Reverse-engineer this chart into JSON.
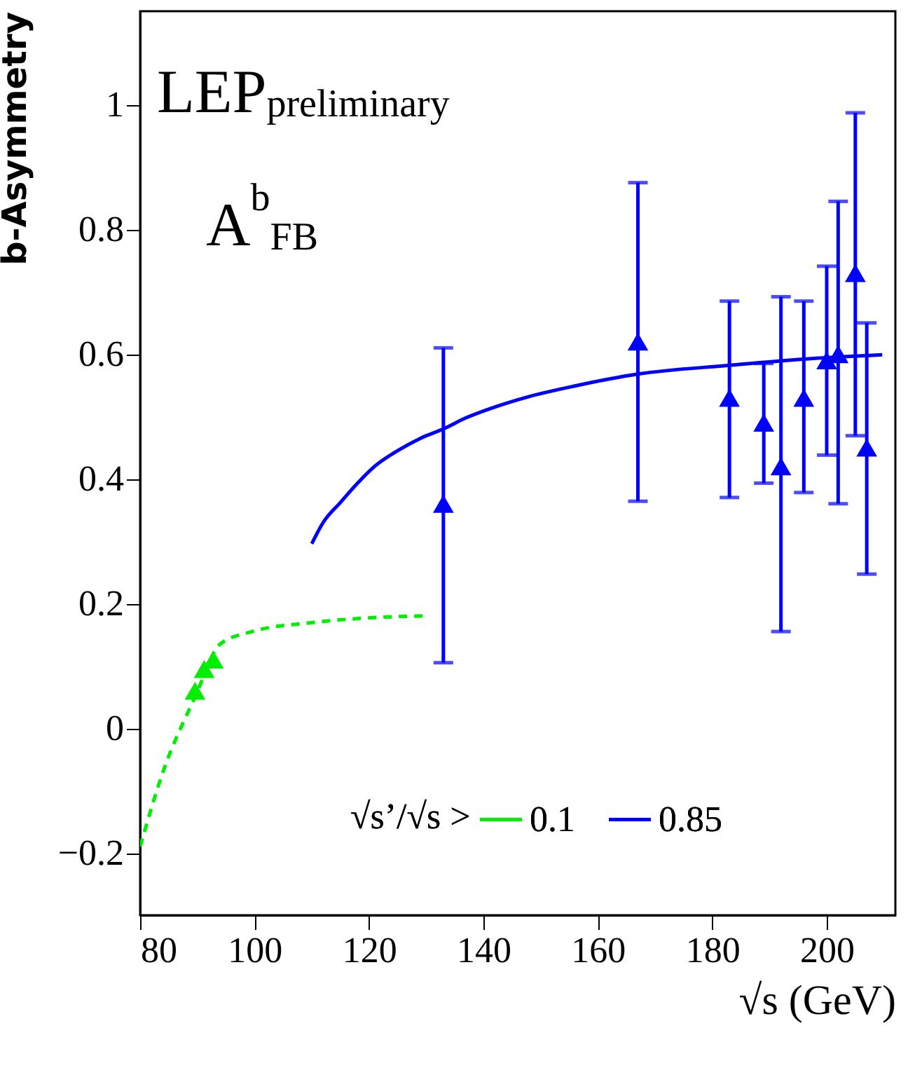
{
  "chart_data": {
    "type": "scatter",
    "xlabel": "√s  (GeV)",
    "ylabel": "b-Asymmetry",
    "legend_title": "√s’/√s >",
    "legend": "bottom",
    "grid": false,
    "xlim": [
      80,
      212
    ],
    "xticks": [
      80,
      100,
      120,
      140,
      160,
      180,
      200
    ],
    "ylim": [
      -0.3,
      1.15
    ],
    "yticks": [
      -0.2,
      0,
      0.2,
      0.4,
      0.6,
      0.8,
      1
    ],
    "annotations": [
      "LEP$_{preliminary}$",
      "A$^{b}$$_{FB}$"
    ],
    "series": [
      {
        "name": "0.1",
        "type": "line",
        "color": "#00ee00",
        "line_style": "dashed",
        "x": [
          80,
          84,
          89.6,
          94,
          99.6,
          109.7,
          120,
          130
        ],
        "values": [
          -0.19,
          -0.07,
          0.05,
          0.135,
          0.155,
          0.169,
          0.177,
          0.18
        ]
      },
      {
        "name": "0.85",
        "type": "line",
        "color": "#0000ff",
        "line_style": "solid",
        "x": [
          110,
          112,
          115,
          118,
          121,
          125,
          129,
          133,
          137,
          141,
          148,
          156,
          167,
          183,
          196,
          209.7
        ],
        "values": [
          0.296,
          0.33,
          0.362,
          0.393,
          0.42,
          0.445,
          0.465,
          0.48,
          0.498,
          0.512,
          0.532,
          0.549,
          0.568,
          0.582,
          0.592,
          0.599
        ]
      },
      {
        "color": "#00ee00",
        "marker": "triangle",
        "x": [
          89.6,
          91.2,
          92.8
        ],
        "values": [
          0.06,
          0.095,
          0.11
        ]
      },
      {
        "color": "#0000ff",
        "marker": "triangle",
        "x": [
          133,
          167,
          183,
          189,
          192,
          196,
          200,
          202,
          205,
          207
        ],
        "values": [
          0.36,
          0.62,
          0.53,
          0.49,
          0.42,
          0.53,
          0.59,
          0.6,
          0.73,
          0.45
        ],
        "errors": [
          [
            0.105,
            0.61
          ],
          [
            0.364,
            0.875
          ],
          [
            0.37,
            0.685
          ],
          [
            0.393,
            0.585
          ],
          [
            0.155,
            0.692
          ],
          [
            0.378,
            0.685
          ],
          [
            0.438,
            0.741
          ],
          [
            0.36,
            0.845
          ],
          [
            0.469,
            0.987
          ],
          [
            0.247,
            0.65
          ]
        ]
      }
    ]
  }
}
